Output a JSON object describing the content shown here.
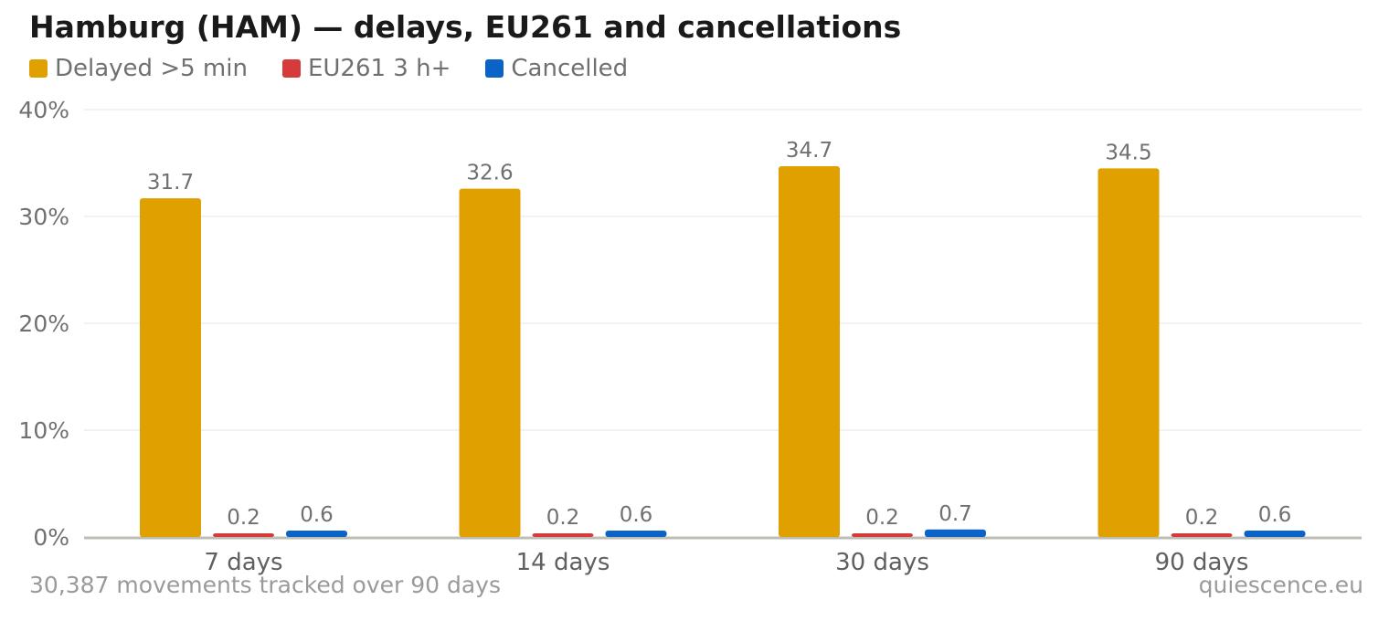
{
  "header": {
    "title": "Hamburg (HAM) — delays, EU261 and cancellations"
  },
  "legend": {
    "items": [
      {
        "label": "Delayed >5 min",
        "color": "#E0A000"
      },
      {
        "label": "EU261 3 h+",
        "color": "#D63A3A"
      },
      {
        "label": "Cancelled",
        "color": "#0A64C8"
      }
    ]
  },
  "footer": {
    "note": "30,387 movements tracked over 90 days",
    "source": "quiescence.eu"
  },
  "chart_data": {
    "type": "bar",
    "categories": [
      "7 days",
      "14 days",
      "30 days",
      "90 days"
    ],
    "series": [
      {
        "name": "Delayed >5 min",
        "color": "#E0A000",
        "values": [
          31.7,
          32.6,
          34.7,
          34.5
        ]
      },
      {
        "name": "EU261 3 h+",
        "color": "#D63A3A",
        "values": [
          0.2,
          0.2,
          0.2,
          0.2
        ]
      },
      {
        "name": "Cancelled",
        "color": "#0A64C8",
        "values": [
          0.6,
          0.6,
          0.7,
          0.6
        ]
      }
    ],
    "ylim": [
      0,
      40
    ],
    "yticks": [
      "0%",
      "10%",
      "20%",
      "30%",
      "40%"
    ],
    "ytick_values": [
      0,
      10,
      20,
      30,
      40
    ],
    "grid": true,
    "data_labels": true,
    "legend_position": "top-left"
  }
}
